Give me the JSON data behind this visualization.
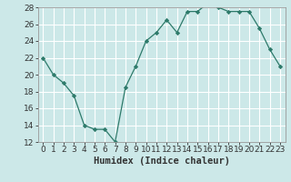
{
  "title": "",
  "xlabel": "Humidex (Indice chaleur)",
  "x": [
    0,
    1,
    2,
    3,
    4,
    5,
    6,
    7,
    8,
    9,
    10,
    11,
    12,
    13,
    14,
    15,
    16,
    17,
    18,
    19,
    20,
    21,
    22,
    23
  ],
  "y": [
    22,
    20,
    19,
    17.5,
    14,
    13.5,
    13.5,
    12,
    18.5,
    21,
    24,
    25,
    26.5,
    25,
    27.5,
    27.5,
    28.5,
    28,
    27.5,
    27.5,
    27.5,
    25.5,
    23,
    21
  ],
  "ylim": [
    12,
    28
  ],
  "yticks": [
    12,
    14,
    16,
    18,
    20,
    22,
    24,
    26,
    28
  ],
  "xlim": [
    -0.5,
    23.5
  ],
  "xticks": [
    0,
    1,
    2,
    3,
    4,
    5,
    6,
    7,
    8,
    9,
    10,
    11,
    12,
    13,
    14,
    15,
    16,
    17,
    18,
    19,
    20,
    21,
    22,
    23
  ],
  "line_color": "#2d7a6a",
  "marker": "D",
  "marker_size": 2.2,
  "bg_color": "#cce8e8",
  "grid_color": "#ffffff",
  "axis_color": "#999999",
  "tick_color": "#333333",
  "label_fontsize": 6.5,
  "xlabel_fontsize": 7.5
}
